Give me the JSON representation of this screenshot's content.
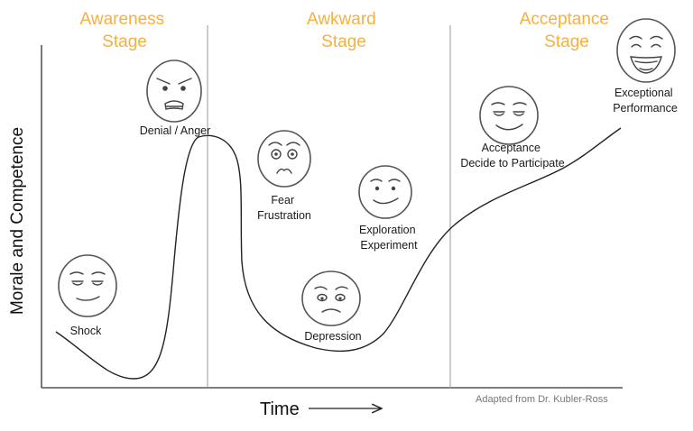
{
  "stages": [
    {
      "id": "awareness",
      "line1": "Awareness",
      "line2": "Stage"
    },
    {
      "id": "awkward",
      "line1": "Awkward",
      "line2": "Stage"
    },
    {
      "id": "acceptance",
      "line1": "Acceptance",
      "line2": "Stage"
    }
  ],
  "axes": {
    "y_label": "Morale and Competence",
    "x_label": "Time"
  },
  "source_note": "Adapted from Dr. Kubler-Ross",
  "phases": [
    {
      "id": "shock",
      "lines": [
        "Shock"
      ],
      "expression": "tired-face-icon"
    },
    {
      "id": "denial",
      "lines": [
        "Denial / Anger"
      ],
      "expression": "angry-face-icon"
    },
    {
      "id": "fear",
      "lines": [
        "Fear",
        "Frustration"
      ],
      "expression": "frightened-face-icon"
    },
    {
      "id": "depression",
      "lines": [
        "Depression"
      ],
      "expression": "sad-face-icon"
    },
    {
      "id": "exploration",
      "lines": [
        "Exploration",
        "Experiment"
      ],
      "expression": "smirk-face-icon"
    },
    {
      "id": "acceptance",
      "lines": [
        "Acceptance",
        "Decide to Participate"
      ],
      "expression": "content-face-icon"
    },
    {
      "id": "performance",
      "lines": [
        "Exceptional",
        "Performance"
      ],
      "expression": "laughing-face-icon"
    }
  ]
}
